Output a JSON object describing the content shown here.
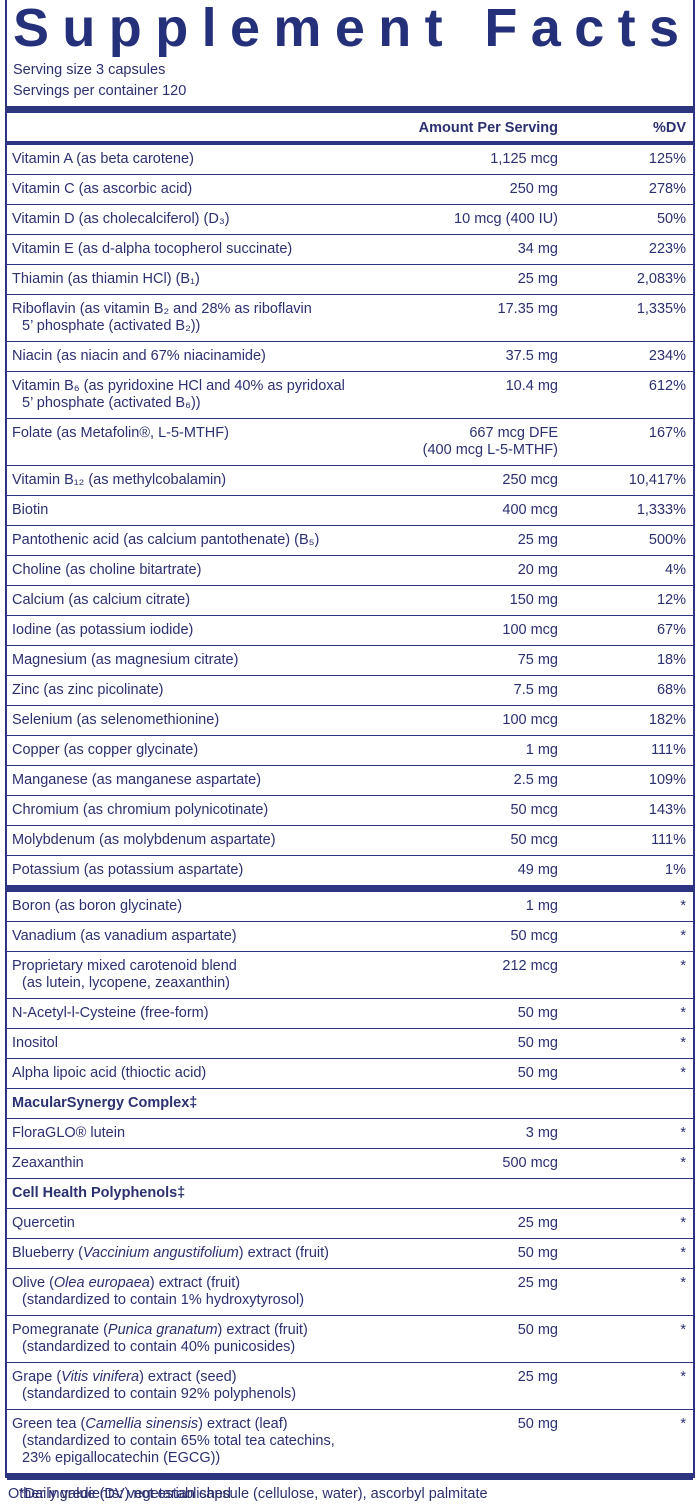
{
  "header": {
    "title": "Supplement Facts",
    "serving_size": "Serving size  3 capsules",
    "servings_per_container": "Servings per container  120"
  },
  "table": {
    "columns": [
      "Amount Per Serving",
      "%DV"
    ],
    "sections": [
      {
        "rows": [
          {
            "label": [
              "Vitamin A (as beta carotene)"
            ],
            "amount": [
              "1,125 mcg"
            ],
            "dv": "125%"
          },
          {
            "label": [
              "Vitamin C (as ascorbic acid)"
            ],
            "amount": [
              "250 mg"
            ],
            "dv": "278%"
          },
          {
            "label": [
              "Vitamin D (as cholecalciferol) (D₃)"
            ],
            "amount": [
              "10 mcg (400 IU)"
            ],
            "dv": "50%"
          },
          {
            "label": [
              "Vitamin E (as d-alpha tocopherol succinate)"
            ],
            "amount": [
              "34 mg"
            ],
            "dv": "223%"
          },
          {
            "label": [
              "Thiamin (as thiamin HCl) (B₁)"
            ],
            "amount": [
              "25 mg"
            ],
            "dv": "2,083%"
          },
          {
            "label": [
              "Riboflavin (as vitamin B₂ and 28% as riboflavin",
              "5’ phosphate (activated B₂))"
            ],
            "amount": [
              "17.35 mg"
            ],
            "dv": "1,335%"
          },
          {
            "label": [
              "Niacin (as niacin and 67% niacinamide)"
            ],
            "amount": [
              "37.5 mg"
            ],
            "dv": "234%"
          },
          {
            "label": [
              "Vitamin B₆ (as pyridoxine HCl and 40% as pyridoxal",
              "5’ phosphate (activated B₆))"
            ],
            "amount": [
              "10.4 mg"
            ],
            "dv": "612%"
          },
          {
            "label": [
              "Folate (as Metafolin®, L-5-MTHF)"
            ],
            "amount": [
              "667 mcg DFE",
              "(400 mcg L-5-MTHF)"
            ],
            "dv": "167%"
          },
          {
            "label": [
              "Vitamin B₁₂ (as methylcobalamin)"
            ],
            "amount": [
              "250 mcg"
            ],
            "dv": "10,417%"
          },
          {
            "label": [
              "Biotin"
            ],
            "amount": [
              "400 mcg"
            ],
            "dv": "1,333%"
          },
          {
            "label": [
              "Pantothenic acid (as calcium pantothenate) (B₅)"
            ],
            "amount": [
              "25 mg"
            ],
            "dv": "500%"
          },
          {
            "label": [
              "Choline (as choline bitartrate)"
            ],
            "amount": [
              "20 mg"
            ],
            "dv": "4%"
          },
          {
            "label": [
              "Calcium (as calcium citrate)"
            ],
            "amount": [
              "150 mg"
            ],
            "dv": "12%"
          },
          {
            "label": [
              "Iodine (as potassium iodide)"
            ],
            "amount": [
              "100 mcg"
            ],
            "dv": "67%"
          },
          {
            "label": [
              "Magnesium (as magnesium citrate)"
            ],
            "amount": [
              "75 mg"
            ],
            "dv": "18%"
          },
          {
            "label": [
              "Zinc (as zinc picolinate)"
            ],
            "amount": [
              "7.5 mg"
            ],
            "dv": "68%"
          },
          {
            "label": [
              "Selenium (as selenomethionine)"
            ],
            "amount": [
              "100 mcg"
            ],
            "dv": "182%"
          },
          {
            "label": [
              "Copper (as copper glycinate)"
            ],
            "amount": [
              "1 mg"
            ],
            "dv": "111%"
          },
          {
            "label": [
              "Manganese (as manganese aspartate)"
            ],
            "amount": [
              "2.5 mg"
            ],
            "dv": "109%"
          },
          {
            "label": [
              "Chromium (as chromium polynicotinate)"
            ],
            "amount": [
              "50 mcg"
            ],
            "dv": "143%"
          },
          {
            "label": [
              "Molybdenum (as molybdenum aspartate)"
            ],
            "amount": [
              "50 mcg"
            ],
            "dv": "111%"
          },
          {
            "label": [
              "Potassium (as potassium aspartate)"
            ],
            "amount": [
              "49 mg"
            ],
            "dv": "1%"
          }
        ]
      },
      {
        "rows": [
          {
            "label": [
              "Boron (as boron glycinate)"
            ],
            "amount": [
              "1 mg"
            ],
            "dv": "*"
          },
          {
            "label": [
              "Vanadium (as vanadium aspartate)"
            ],
            "amount": [
              "50 mcg"
            ],
            "dv": "*"
          },
          {
            "label": [
              "Proprietary mixed carotenoid blend",
              "(as lutein, lycopene, zeaxanthin)"
            ],
            "amount": [
              "212 mcg"
            ],
            "dv": "*"
          },
          {
            "label": [
              "N-Acetyl-l-Cysteine (free-form)"
            ],
            "amount": [
              "50 mg"
            ],
            "dv": "*"
          },
          {
            "label": [
              "Inositol"
            ],
            "amount": [
              "50 mg"
            ],
            "dv": "*"
          },
          {
            "label": [
              "Alpha lipoic acid (thioctic acid)"
            ],
            "amount": [
              "50 mg"
            ],
            "dv": "*"
          },
          {
            "heading": "MacularSynergy Complex‡"
          },
          {
            "label": [
              "FloraGLO® lutein"
            ],
            "amount": [
              "3 mg"
            ],
            "dv": "*"
          },
          {
            "label": [
              "Zeaxanthin"
            ],
            "amount": [
              "500 mcg"
            ],
            "dv": "*"
          },
          {
            "heading": "Cell Health Polyphenols‡"
          },
          {
            "label": [
              "Quercetin"
            ],
            "amount": [
              "25 mg"
            ],
            "dv": "*"
          },
          {
            "label": [
              [
                "Blueberry (",
                "Vaccinium angustifolium",
                ") extract (fruit)"
              ]
            ],
            "amount": [
              "50 mg"
            ],
            "dv": "*"
          },
          {
            "label": [
              [
                "Olive (",
                "Olea europaea",
                ") extract (fruit)"
              ],
              "(standardized to contain 1% hydroxytyrosol)"
            ],
            "amount": [
              "25 mg"
            ],
            "dv": "*"
          },
          {
            "label": [
              [
                "Pomegranate (",
                "Punica granatum",
                ") extract (fruit)"
              ],
              "(standardized to contain 40% punicosides)"
            ],
            "amount": [
              "50 mg"
            ],
            "dv": "*"
          },
          {
            "label": [
              [
                "Grape (",
                "Vitis vinifera",
                ") extract (seed)"
              ],
              "(standardized to contain 92% polyphenols)"
            ],
            "amount": [
              "25 mg"
            ],
            "dv": "*"
          },
          {
            "label": [
              [
                "Green tea (",
                "Camellia sinensis",
                ") extract (leaf)"
              ],
              "(standardized to contain 65% total tea catechins,",
              "23% epigallocatechin (EGCG))"
            ],
            "amount": [
              "50 mg"
            ],
            "dv": "*"
          }
        ]
      }
    ]
  },
  "footnote": "*Daily value (DV) not established",
  "other_ingredients": "Other ingredients: vegetarian capsule (cellulose, water), ascorbyl palmitate"
}
